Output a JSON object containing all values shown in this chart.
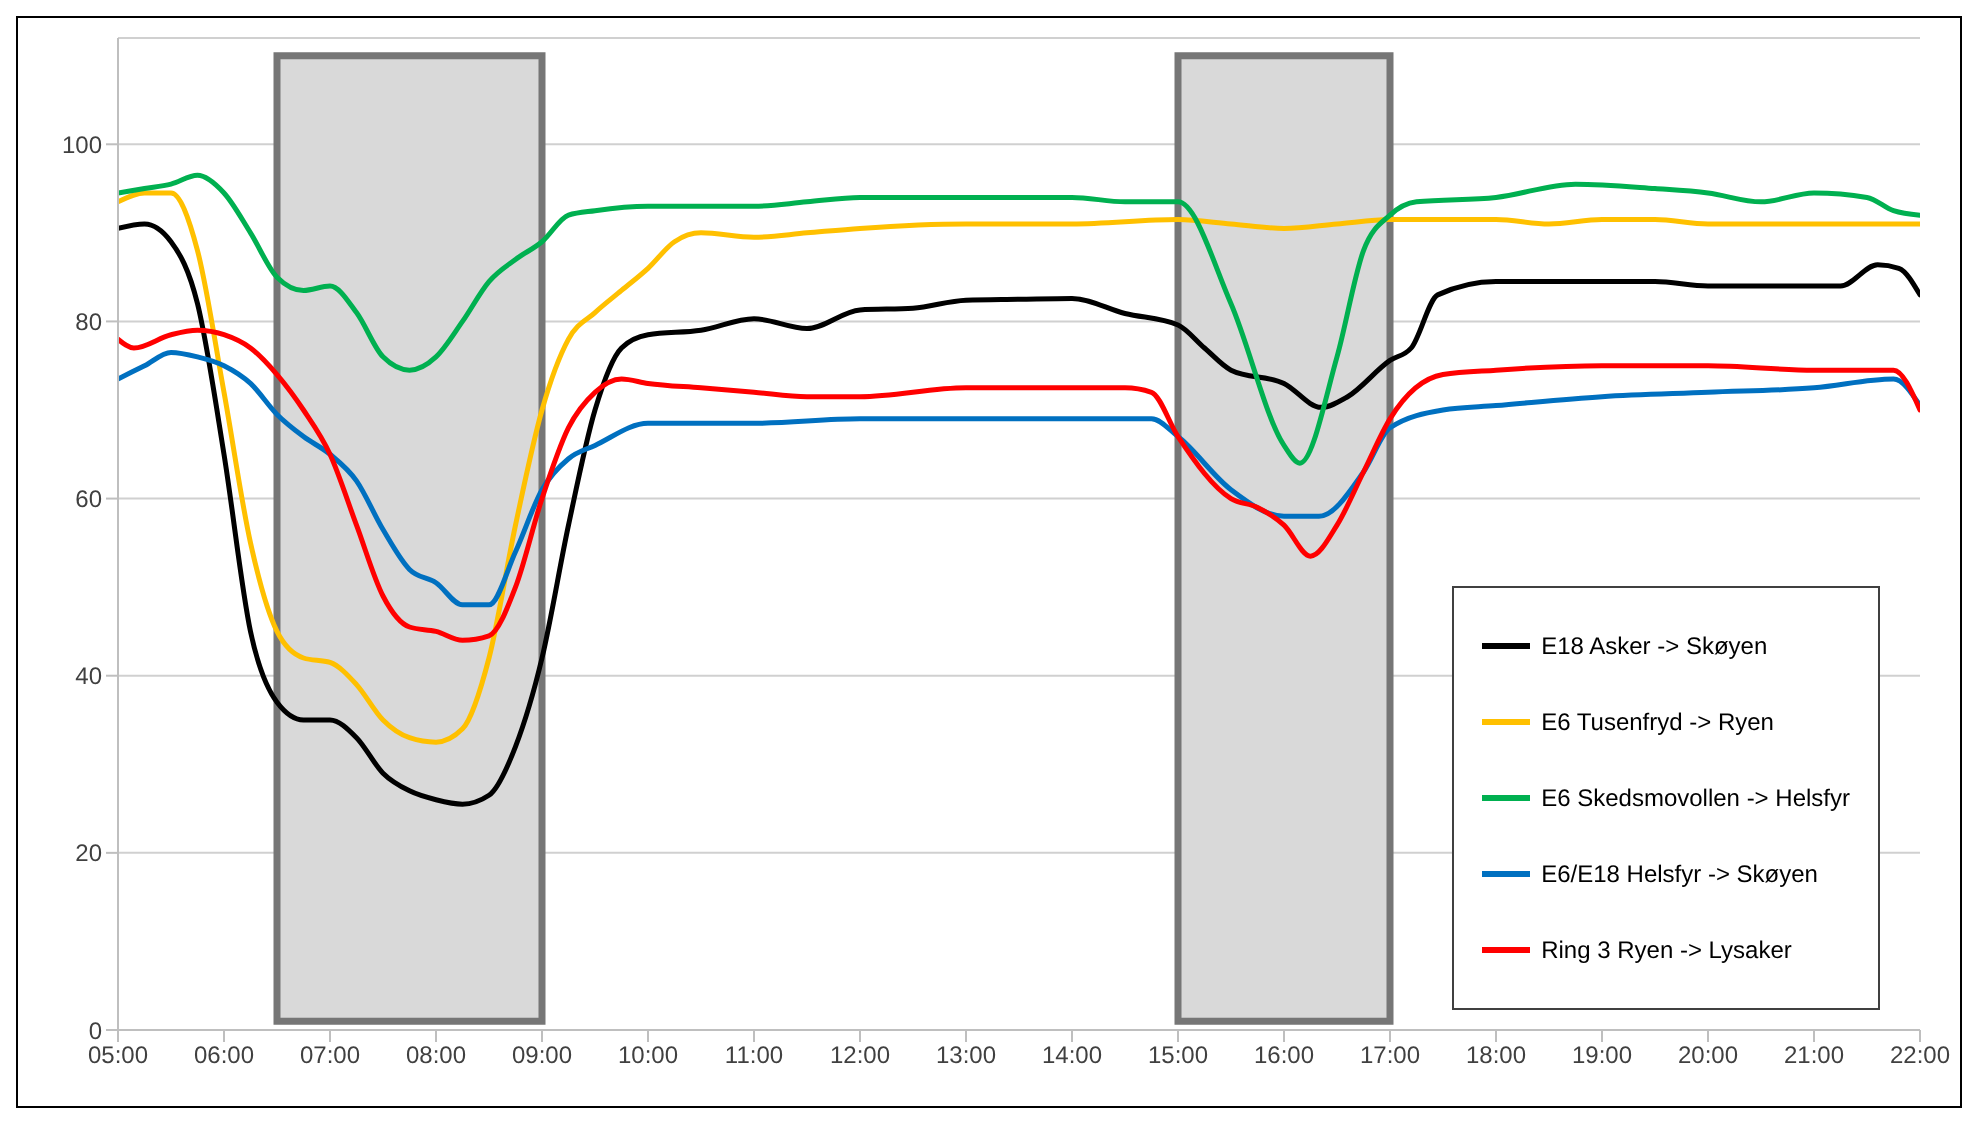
{
  "chart_data": {
    "type": "line",
    "xlim": [
      5,
      22
    ],
    "ylim": [
      0,
      112
    ],
    "xticks": [
      {
        "value": 5,
        "label": "05:00"
      },
      {
        "value": 6,
        "label": "06:00"
      },
      {
        "value": 7,
        "label": "07:00"
      },
      {
        "value": 8,
        "label": "08:00"
      },
      {
        "value": 9,
        "label": "09:00"
      },
      {
        "value": 10,
        "label": "10:00"
      },
      {
        "value": 11,
        "label": "11:00"
      },
      {
        "value": 12,
        "label": "12:00"
      },
      {
        "value": 13,
        "label": "13:00"
      },
      {
        "value": 14,
        "label": "14:00"
      },
      {
        "value": 15,
        "label": "15:00"
      },
      {
        "value": 16,
        "label": "16:00"
      },
      {
        "value": 17,
        "label": "17:00"
      },
      {
        "value": 18,
        "label": "18:00"
      },
      {
        "value": 19,
        "label": "19:00"
      },
      {
        "value": 20,
        "label": "20:00"
      },
      {
        "value": 21,
        "label": "21:00"
      },
      {
        "value": 22,
        "label": "22:00"
      }
    ],
    "yticks": [
      0,
      20,
      40,
      60,
      80,
      100
    ],
    "grid": "y",
    "legend": "bottom right",
    "marker": "none",
    "line_style": "solid",
    "bands": [
      {
        "axis": "x",
        "from": 6.5,
        "to": 9,
        "color": "#d9d9d9"
      },
      {
        "axis": "x",
        "from": 15,
        "to": 17,
        "color": "#d9d9d9"
      }
    ],
    "series": [
      {
        "name": "E18 Asker -> Skøyen",
        "color": "#000000",
        "x": [
          5,
          5.25,
          5.5,
          5.75,
          6,
          6.25,
          6.5,
          6.75,
          7,
          7.25,
          7.5,
          7.75,
          8,
          8.25,
          8.5,
          8.75,
          9,
          9.25,
          9.5,
          9.75,
          10,
          10.5,
          11,
          11.5,
          12,
          12.5,
          13,
          13.5,
          14,
          14.5,
          15,
          15.25,
          15.5,
          16,
          16.35,
          16.6,
          17,
          17.2,
          17.45,
          18,
          18.5,
          19,
          19.5,
          20,
          20.5,
          21,
          21.25,
          21.6,
          21.8,
          22
        ],
        "values": [
          90.5,
          91,
          89,
          82,
          65,
          45,
          37,
          35,
          35,
          33,
          29,
          27,
          26,
          25.5,
          26.5,
          32,
          42,
          57,
          70,
          77,
          78.5,
          79,
          80.3,
          79.2,
          81.3,
          81.5,
          82.4,
          82.5,
          82.6,
          80.9,
          79.6,
          77,
          74.5,
          73,
          70.3,
          71.5,
          75.6,
          77,
          83,
          84.5,
          84.5,
          84.5,
          84.5,
          84,
          84,
          84,
          84,
          86.4,
          86,
          83
        ]
      },
      {
        "name": "E6 Tusenfryd -> Ryen",
        "color": "#ffc000",
        "x": [
          5,
          5.25,
          5.5,
          5.75,
          6,
          6.25,
          6.5,
          6.75,
          7,
          7.25,
          7.5,
          7.75,
          8,
          8.25,
          8.5,
          8.75,
          9,
          9.25,
          9.5,
          9.75,
          10,
          10.25,
          10.5,
          11,
          11.5,
          12,
          13,
          14,
          15,
          15.5,
          16,
          16.5,
          17,
          18,
          18.5,
          19,
          19.5,
          20,
          21,
          22
        ],
        "values": [
          93.5,
          94.5,
          94.5,
          88,
          72,
          55,
          45,
          42,
          41.5,
          39,
          35,
          33,
          32.5,
          34,
          42,
          57,
          70,
          78,
          81,
          83.5,
          86,
          89,
          90,
          89.5,
          90,
          90.5,
          91,
          91,
          91.5,
          91,
          90.5,
          91,
          91.5,
          91.5,
          91,
          91.5,
          91.5,
          91,
          91,
          91
        ]
      },
      {
        "name": "E6 Skedsmovollen -> Helsfyr",
        "color": "#00b050",
        "x": [
          5,
          5.25,
          5.5,
          5.75,
          6,
          6.25,
          6.5,
          6.75,
          7,
          7.25,
          7.5,
          7.75,
          8,
          8.25,
          8.5,
          8.75,
          9,
          9.25,
          9.5,
          10,
          11,
          11.5,
          12,
          13,
          14,
          14.5,
          15,
          15.5,
          16,
          16.15,
          16.5,
          16.75,
          17,
          17.25,
          18,
          18.75,
          19.5,
          20,
          20.5,
          21,
          21.5,
          21.75,
          22
        ],
        "values": [
          94.5,
          95,
          95.5,
          96.5,
          94.5,
          90,
          85,
          83.5,
          84,
          81,
          76,
          74.5,
          76,
          80,
          84.5,
          87,
          89,
          92,
          92.5,
          93,
          93,
          93.5,
          94,
          94,
          94,
          93.5,
          93.5,
          82,
          66,
          64,
          76,
          88,
          92,
          93.5,
          94,
          95.5,
          95,
          94.5,
          93.5,
          94.5,
          94,
          92.5,
          92
        ]
      },
      {
        "name": "E6/E18 Helsfyr -> Skøyen",
        "color": "#0070c0",
        "x": [
          5,
          5.25,
          5.5,
          5.75,
          6,
          6.25,
          6.5,
          6.75,
          7,
          7.25,
          7.5,
          7.75,
          8,
          8.25,
          8.5,
          8.75,
          9,
          9.25,
          9.5,
          10,
          11,
          12,
          13,
          14,
          14.75,
          15,
          15.5,
          16,
          16.33,
          16.75,
          17,
          17.5,
          18,
          19,
          20,
          21,
          21.75,
          22
        ],
        "values": [
          73.5,
          75,
          76.5,
          76,
          75,
          73,
          69.5,
          67,
          65,
          62,
          56.5,
          52,
          50.5,
          48,
          48,
          54,
          61,
          64.5,
          66,
          68.5,
          68.5,
          69,
          69,
          69,
          69,
          67,
          61,
          58,
          58,
          63,
          68,
          70,
          70.5,
          71.5,
          72,
          72.5,
          73.5,
          70.5
        ]
      },
      {
        "name": "Ring 3 Ryen -> Lysaker",
        "color": "#ff0000",
        "x": [
          5,
          5.15,
          5.5,
          5.75,
          6,
          6.25,
          6.5,
          6.75,
          7,
          7.25,
          7.5,
          7.75,
          8,
          8.25,
          8.5,
          8.75,
          9,
          9.25,
          9.5,
          9.75,
          10,
          10.5,
          11,
          11.5,
          12,
          13,
          14,
          14.5,
          14.75,
          15,
          15.5,
          15.75,
          16,
          16.25,
          16.5,
          16.75,
          17,
          17.5,
          18,
          19,
          20,
          21,
          21.75,
          22
        ],
        "values": [
          78,
          77,
          78.5,
          79,
          78.5,
          77,
          74,
          70,
          65,
          57,
          49,
          45.5,
          45,
          44,
          44.5,
          50,
          60,
          68,
          72,
          73.5,
          73,
          72.5,
          72,
          71.5,
          71.5,
          72.5,
          72.5,
          72.5,
          72,
          67,
          60,
          59,
          57,
          53.5,
          57,
          63,
          69,
          74,
          74.5,
          75,
          75,
          74.5,
          74.5,
          70
        ]
      }
    ]
  }
}
